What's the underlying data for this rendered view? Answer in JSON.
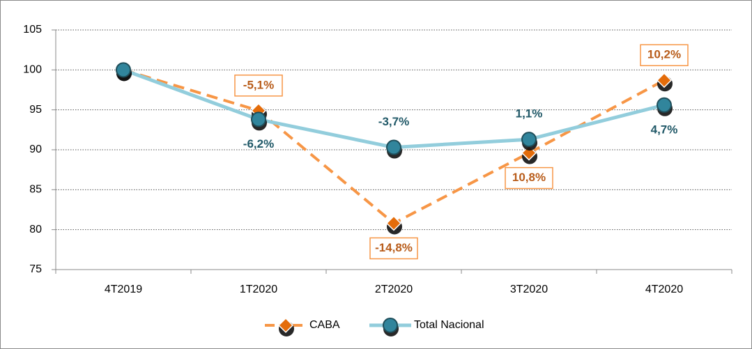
{
  "chart_data": {
    "type": "line",
    "categories": [
      "4T2019",
      "1T2020",
      "2T2020",
      "3T2020",
      "4T2020"
    ],
    "series": [
      {
        "name": "CABA",
        "color": "#f79646",
        "values": [
          100,
          94.9,
          80.8,
          89.6,
          98.7
        ],
        "change_labels": [
          null,
          "-5,1%",
          "-14,8%",
          "10,8%",
          "10,2%"
        ]
      },
      {
        "name": "Total Nacional",
        "color": "#92cddc",
        "values": [
          100,
          93.8,
          90.3,
          91.3,
          95.6
        ],
        "change_labels": [
          null,
          "-6,2%",
          "-3,7%",
          "1,1%",
          "4,7%"
        ]
      }
    ],
    "ylim": [
      75,
      105
    ],
    "yticks": [
      75,
      80,
      85,
      90,
      95,
      100,
      105
    ],
    "grid": true
  }
}
